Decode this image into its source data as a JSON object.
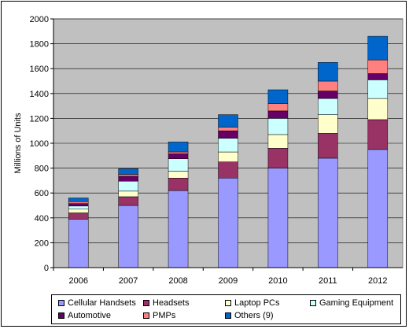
{
  "chart_data": {
    "type": "bar",
    "stacked": true,
    "categories": [
      "2006",
      "2007",
      "2008",
      "2009",
      "2010",
      "2011",
      "2012"
    ],
    "ylabel": "Millions of Units",
    "ylim": [
      0,
      2000
    ],
    "yticks": [
      0,
      200,
      400,
      600,
      800,
      1000,
      1200,
      1400,
      1600,
      1800,
      2000
    ],
    "grid": true,
    "legend_position": "bottom",
    "series": [
      {
        "name": "Cellular Handsets",
        "color": "#9999FF",
        "values": [
          390,
          500,
          620,
          720,
          800,
          880,
          950
        ]
      },
      {
        "name": "Headsets",
        "color": "#993366",
        "values": [
          50,
          70,
          100,
          130,
          160,
          200,
          240
        ]
      },
      {
        "name": "Laptop PCs",
        "color": "#FFFFCC",
        "values": [
          30,
          45,
          55,
          80,
          110,
          150,
          170
        ]
      },
      {
        "name": "Gaming Equipment",
        "color": "#CCFFFF",
        "values": [
          25,
          80,
          100,
          110,
          130,
          130,
          150
        ]
      },
      {
        "name": "Automotive",
        "color": "#660066",
        "values": [
          20,
          40,
          40,
          60,
          60,
          60,
          50
        ]
      },
      {
        "name": "PMPs",
        "color": "#FF8080",
        "values": [
          15,
          15,
          15,
          30,
          60,
          80,
          110
        ]
      },
      {
        "name": "Others (9)",
        "color": "#0066CC",
        "values": [
          30,
          45,
          80,
          100,
          110,
          150,
          190
        ]
      }
    ]
  }
}
